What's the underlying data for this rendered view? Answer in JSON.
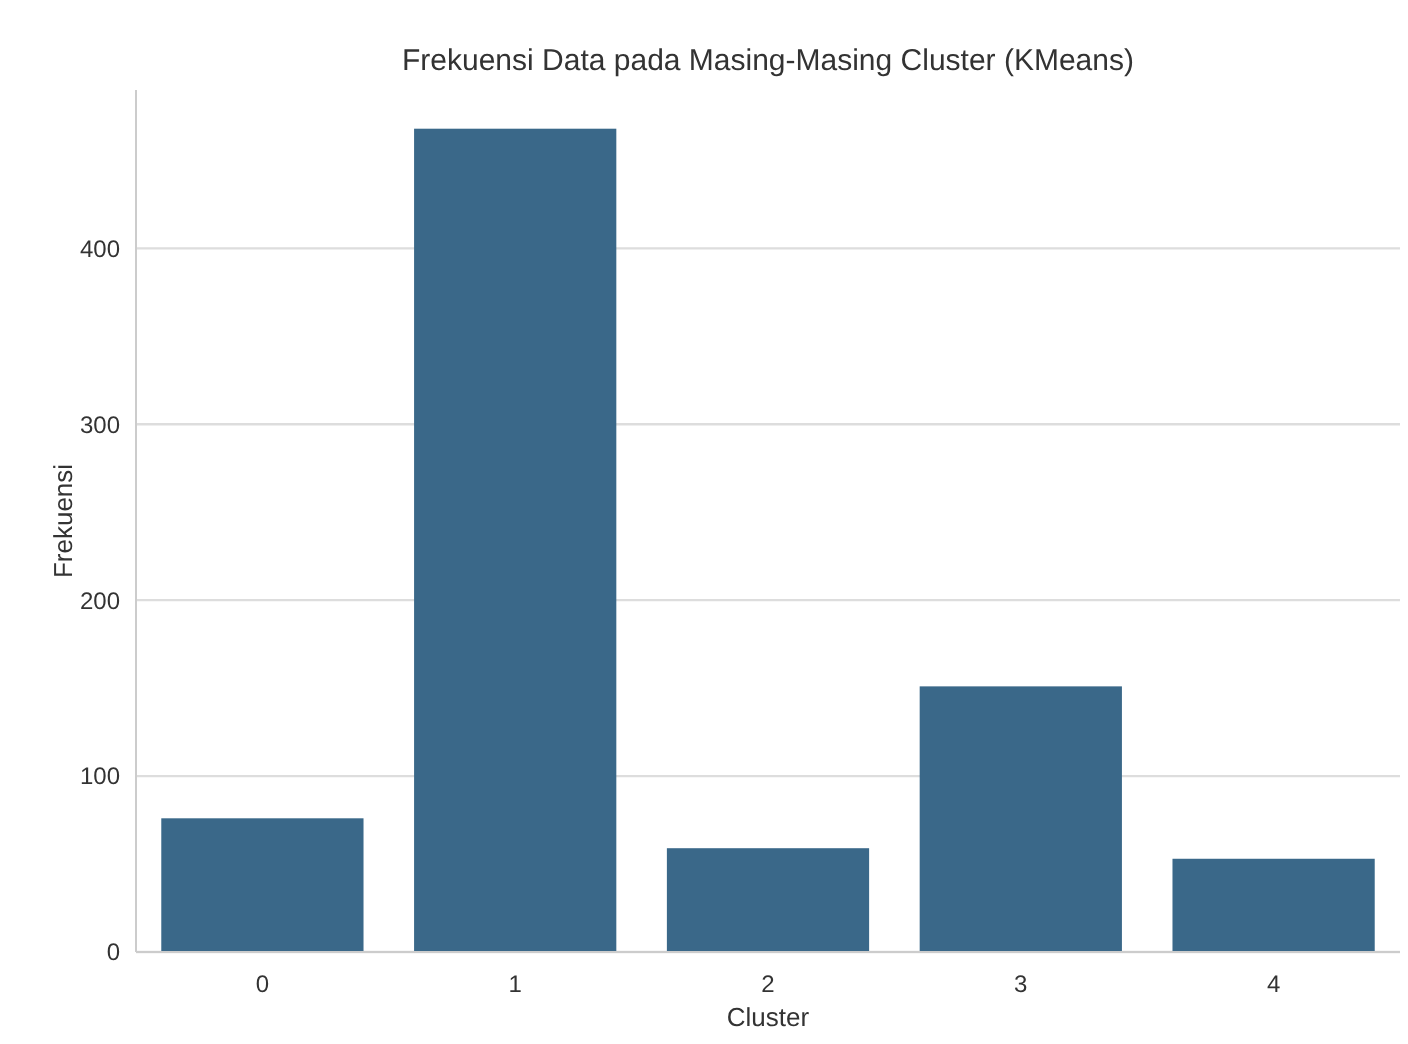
{
  "chart_data": {
    "type": "bar",
    "title": "Frekuensi Data pada Masing-Masing Cluster (KMeans)",
    "xlabel": "Cluster",
    "ylabel": "Frekuensi",
    "categories": [
      "0",
      "1",
      "2",
      "3",
      "4"
    ],
    "values": [
      76,
      468,
      59,
      151,
      53
    ],
    "color": "#3a6889",
    "ylim": [
      0,
      490
    ],
    "yticks": [
      0,
      100,
      200,
      300,
      400
    ],
    "grid": "y"
  }
}
